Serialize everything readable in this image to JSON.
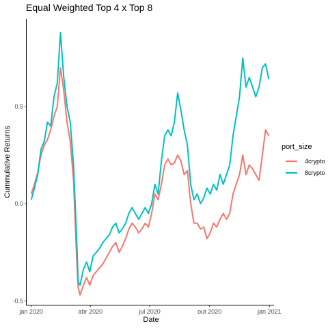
{
  "chart_data": {
    "type": "line",
    "title": "Equal Weighted Top 4 x Top 8",
    "xlabel": "Date",
    "ylabel": "Cummulative Returns",
    "xlim": [
      "2019-12-25",
      "2021-01-08"
    ],
    "ylim": [
      -0.52,
      0.95
    ],
    "x_ticks": [
      {
        "date": "2020-01-01",
        "label": "jan 2020"
      },
      {
        "date": "2020-04-01",
        "label": "abr 2020"
      },
      {
        "date": "2020-07-01",
        "label": "jul 2020"
      },
      {
        "date": "2020-10-01",
        "label": "out 2020"
      },
      {
        "date": "2021-01-01",
        "label": "jan 2021"
      }
    ],
    "y_ticks": [
      {
        "value": -0.5,
        "label": "-0.5"
      },
      {
        "value": 0.0,
        "label": "0.0"
      },
      {
        "value": 0.5,
        "label": "0.5"
      }
    ],
    "grid": false,
    "legend": {
      "title": "port_size",
      "position": "right"
    },
    "series": [
      {
        "name": "4crypto",
        "color": "#F8766D",
        "points": [
          [
            "2020-01-01",
            0.05
          ],
          [
            "2020-01-06",
            0.1
          ],
          [
            "2020-01-11",
            0.16
          ],
          [
            "2020-01-16",
            0.25
          ],
          [
            "2020-01-21",
            0.3
          ],
          [
            "2020-01-26",
            0.33
          ],
          [
            "2020-01-31",
            0.38
          ],
          [
            "2020-02-05",
            0.45
          ],
          [
            "2020-02-10",
            0.5
          ],
          [
            "2020-02-15",
            0.7
          ],
          [
            "2020-02-20",
            0.58
          ],
          [
            "2020-02-25",
            0.42
          ],
          [
            "2020-03-01",
            0.32
          ],
          [
            "2020-03-06",
            0.12
          ],
          [
            "2020-03-11",
            -0.3
          ],
          [
            "2020-03-13",
            -0.43
          ],
          [
            "2020-03-16",
            -0.47
          ],
          [
            "2020-03-21",
            -0.42
          ],
          [
            "2020-03-26",
            -0.38
          ],
          [
            "2020-03-31",
            -0.42
          ],
          [
            "2020-04-05",
            -0.37
          ],
          [
            "2020-04-10",
            -0.35
          ],
          [
            "2020-04-15",
            -0.33
          ],
          [
            "2020-04-20",
            -0.31
          ],
          [
            "2020-04-25",
            -0.28
          ],
          [
            "2020-04-30",
            -0.25
          ],
          [
            "2020-05-05",
            -0.22
          ],
          [
            "2020-05-10",
            -0.2
          ],
          [
            "2020-05-15",
            -0.25
          ],
          [
            "2020-05-20",
            -0.22
          ],
          [
            "2020-05-25",
            -0.18
          ],
          [
            "2020-05-30",
            -0.13
          ],
          [
            "2020-06-04",
            -0.1
          ],
          [
            "2020-06-09",
            -0.12
          ],
          [
            "2020-06-14",
            -0.15
          ],
          [
            "2020-06-19",
            -0.13
          ],
          [
            "2020-06-24",
            -0.1
          ],
          [
            "2020-06-29",
            -0.12
          ],
          [
            "2020-07-04",
            -0.05
          ],
          [
            "2020-07-09",
            0.05
          ],
          [
            "2020-07-14",
            0.02
          ],
          [
            "2020-07-19",
            0.1
          ],
          [
            "2020-07-24",
            0.2
          ],
          [
            "2020-07-29",
            0.23
          ],
          [
            "2020-08-03",
            0.2
          ],
          [
            "2020-08-08",
            0.21
          ],
          [
            "2020-08-13",
            0.25
          ],
          [
            "2020-08-18",
            0.22
          ],
          [
            "2020-08-23",
            0.15
          ],
          [
            "2020-08-28",
            0.17
          ],
          [
            "2020-09-02",
            0.0
          ],
          [
            "2020-09-07",
            -0.1
          ],
          [
            "2020-09-12",
            -0.1
          ],
          [
            "2020-09-17",
            -0.13
          ],
          [
            "2020-09-22",
            -0.12
          ],
          [
            "2020-09-27",
            -0.18
          ],
          [
            "2020-10-02",
            -0.15
          ],
          [
            "2020-10-07",
            -0.1
          ],
          [
            "2020-10-12",
            -0.12
          ],
          [
            "2020-10-17",
            -0.08
          ],
          [
            "2020-10-22",
            -0.05
          ],
          [
            "2020-10-27",
            -0.08
          ],
          [
            "2020-11-01",
            -0.05
          ],
          [
            "2020-11-06",
            0.05
          ],
          [
            "2020-11-11",
            0.1
          ],
          [
            "2020-11-16",
            0.15
          ],
          [
            "2020-11-21",
            0.25
          ],
          [
            "2020-11-26",
            0.15
          ],
          [
            "2020-12-01",
            0.2
          ],
          [
            "2020-12-06",
            0.18
          ],
          [
            "2020-12-11",
            0.15
          ],
          [
            "2020-12-16",
            0.12
          ],
          [
            "2020-12-21",
            0.25
          ],
          [
            "2020-12-26",
            0.38
          ],
          [
            "2020-12-31",
            0.35
          ]
        ]
      },
      {
        "name": "8crypto",
        "color": "#00BFC4",
        "points": [
          [
            "2020-01-01",
            0.02
          ],
          [
            "2020-01-06",
            0.08
          ],
          [
            "2020-01-11",
            0.15
          ],
          [
            "2020-01-16",
            0.28
          ],
          [
            "2020-01-21",
            0.32
          ],
          [
            "2020-01-26",
            0.42
          ],
          [
            "2020-01-31",
            0.4
          ],
          [
            "2020-02-05",
            0.55
          ],
          [
            "2020-02-10",
            0.62
          ],
          [
            "2020-02-15",
            0.88
          ],
          [
            "2020-02-20",
            0.65
          ],
          [
            "2020-02-25",
            0.5
          ],
          [
            "2020-03-01",
            0.42
          ],
          [
            "2020-03-06",
            0.2
          ],
          [
            "2020-03-11",
            -0.2
          ],
          [
            "2020-03-13",
            -0.4
          ],
          [
            "2020-03-16",
            -0.42
          ],
          [
            "2020-03-21",
            -0.34
          ],
          [
            "2020-03-26",
            -0.3
          ],
          [
            "2020-03-31",
            -0.35
          ],
          [
            "2020-04-05",
            -0.27
          ],
          [
            "2020-04-10",
            -0.25
          ],
          [
            "2020-04-15",
            -0.23
          ],
          [
            "2020-04-20",
            -0.2
          ],
          [
            "2020-04-25",
            -0.18
          ],
          [
            "2020-04-30",
            -0.16
          ],
          [
            "2020-05-05",
            -0.12
          ],
          [
            "2020-05-10",
            -0.1
          ],
          [
            "2020-05-15",
            -0.15
          ],
          [
            "2020-05-20",
            -0.13
          ],
          [
            "2020-05-25",
            -0.1
          ],
          [
            "2020-05-30",
            -0.05
          ],
          [
            "2020-06-04",
            -0.02
          ],
          [
            "2020-06-09",
            -0.05
          ],
          [
            "2020-06-14",
            -0.08
          ],
          [
            "2020-06-19",
            -0.05
          ],
          [
            "2020-06-24",
            -0.02
          ],
          [
            "2020-06-29",
            -0.05
          ],
          [
            "2020-07-04",
            0.0
          ],
          [
            "2020-07-09",
            0.1
          ],
          [
            "2020-07-14",
            0.05
          ],
          [
            "2020-07-19",
            0.22
          ],
          [
            "2020-07-24",
            0.35
          ],
          [
            "2020-07-29",
            0.38
          ],
          [
            "2020-08-03",
            0.35
          ],
          [
            "2020-08-08",
            0.42
          ],
          [
            "2020-08-13",
            0.57
          ],
          [
            "2020-08-18",
            0.48
          ],
          [
            "2020-08-23",
            0.38
          ],
          [
            "2020-08-28",
            0.3
          ],
          [
            "2020-09-02",
            0.1
          ],
          [
            "2020-09-07",
            0.02
          ],
          [
            "2020-09-12",
            0.05
          ],
          [
            "2020-09-17",
            0.0
          ],
          [
            "2020-09-22",
            0.03
          ],
          [
            "2020-09-27",
            0.08
          ],
          [
            "2020-10-02",
            0.05
          ],
          [
            "2020-10-07",
            0.1
          ],
          [
            "2020-10-12",
            0.07
          ],
          [
            "2020-10-17",
            0.15
          ],
          [
            "2020-10-22",
            0.1
          ],
          [
            "2020-10-27",
            0.15
          ],
          [
            "2020-11-01",
            0.2
          ],
          [
            "2020-11-06",
            0.35
          ],
          [
            "2020-11-11",
            0.45
          ],
          [
            "2020-11-16",
            0.55
          ],
          [
            "2020-11-21",
            0.75
          ],
          [
            "2020-11-26",
            0.6
          ],
          [
            "2020-12-01",
            0.65
          ],
          [
            "2020-12-06",
            0.6
          ],
          [
            "2020-12-11",
            0.55
          ],
          [
            "2020-12-16",
            0.6
          ],
          [
            "2020-12-21",
            0.7
          ],
          [
            "2020-12-26",
            0.72
          ],
          [
            "2020-12-31",
            0.64
          ]
        ]
      }
    ]
  }
}
